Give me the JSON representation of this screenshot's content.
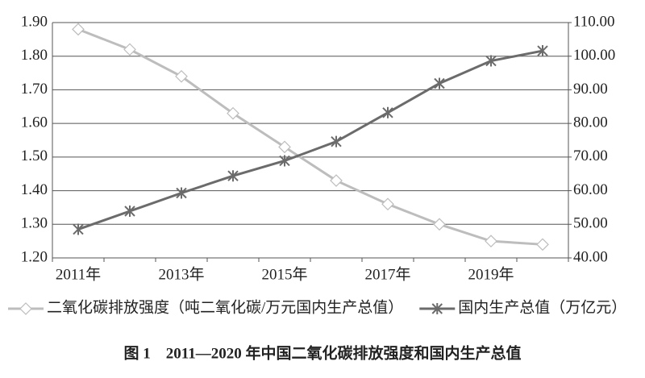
{
  "chart_data": {
    "type": "line",
    "title": "图 1　2011—2020 年中国二氧化碳排放强度和国内生产总值",
    "categories": [
      "2011年",
      null,
      "2013年",
      null,
      "2015年",
      null,
      "2017年",
      null,
      "2019年",
      null
    ],
    "series": [
      {
        "name": "二氧化碳排放强度（吨二氧化碳/万元国内生产总值）",
        "color": "#bdbdbd",
        "marker": "diamond",
        "values": [
          1.88,
          1.82,
          1.74,
          1.63,
          1.53,
          1.43,
          1.36,
          1.3,
          1.25,
          1.24
        ]
      },
      {
        "name": "国内生产总值（万亿元）",
        "color": "#6b6b6b",
        "marker": "star",
        "axis": "y2",
        "values": [
          48.5,
          53.9,
          59.3,
          64.4,
          68.9,
          74.6,
          83.2,
          91.9,
          98.6,
          101.6
        ]
      }
    ],
    "ylim": [
      1.2,
      1.9
    ],
    "yticks": [
      {
        "value": 1.2,
        "label": "1.20"
      },
      {
        "value": 1.3,
        "label": "1.30"
      },
      {
        "value": 1.4,
        "label": "1.40"
      },
      {
        "value": 1.5,
        "label": "1.50"
      },
      {
        "value": 1.6,
        "label": "1.60"
      },
      {
        "value": 1.7,
        "label": "1.70"
      },
      {
        "value": 1.8,
        "label": "1.80"
      },
      {
        "value": 1.9,
        "label": "1.90"
      }
    ],
    "y2lim": [
      40,
      110
    ],
    "y2ticks": [
      {
        "value": 40,
        "label": "40.00"
      },
      {
        "value": 50,
        "label": "50.00"
      },
      {
        "value": 60,
        "label": "60.00"
      },
      {
        "value": 70,
        "label": "70.00"
      },
      {
        "value": 80,
        "label": "80.00"
      },
      {
        "value": 90,
        "label": "90.00"
      },
      {
        "value": 100,
        "label": "100.00"
      },
      {
        "value": 110,
        "label": "110.00"
      }
    ],
    "grid": true,
    "legend": "bottom"
  }
}
